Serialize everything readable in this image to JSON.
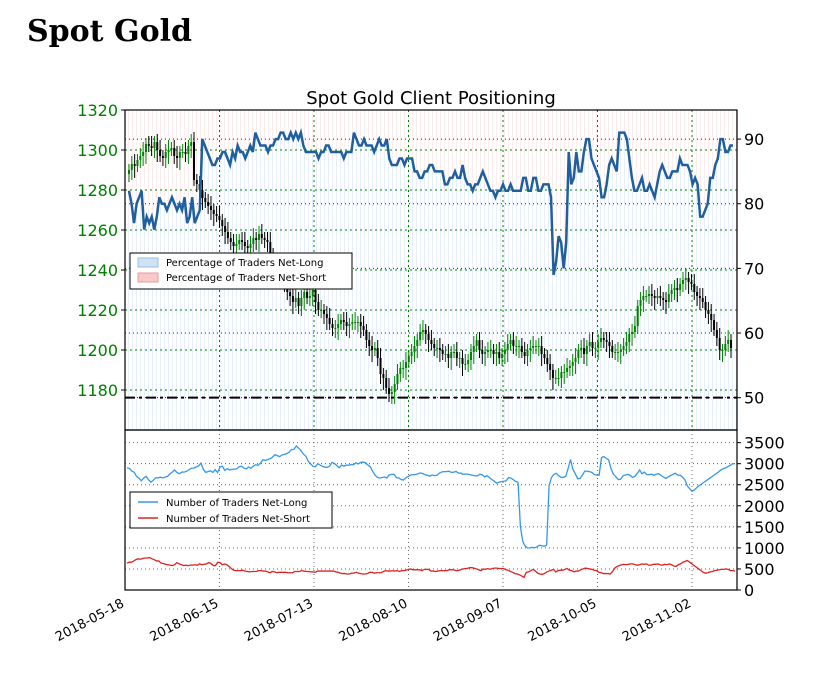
{
  "page": {
    "title": "Spot Gold"
  },
  "chart_data": [
    {
      "type": "candlestick+line",
      "title": "Spot Gold Client Positioning",
      "x_dates": [
        "2018-05-18",
        "2018-06-15",
        "2018-07-13",
        "2018-08-10",
        "2018-09-07",
        "2018-10-05",
        "2018-11-02"
      ],
      "left_axis": {
        "ticks": [
          1180,
          1200,
          1220,
          1240,
          1260,
          1280,
          1300,
          1320
        ],
        "ylim": [
          1160,
          1320
        ],
        "color": "#008000"
      },
      "right_axis": {
        "ticks": [
          50,
          60,
          70,
          80,
          90
        ],
        "ylim": [
          45,
          94.5
        ]
      },
      "legend": {
        "placement": "middle-left",
        "entries": [
          "Percentage of Traders Net-Long",
          "Percentage of Traders Net-Short"
        ]
      },
      "reference_line": {
        "value": 50,
        "style": "dash-dot"
      },
      "net_long_pct": [
        82,
        80,
        77,
        80,
        81,
        82,
        76,
        78,
        77,
        78,
        76,
        78,
        81,
        80,
        80,
        79,
        80,
        81,
        80,
        79,
        80,
        79,
        81,
        77,
        78,
        81,
        77,
        78,
        79,
        90,
        89,
        88,
        87,
        86,
        86,
        87,
        87,
        88,
        88,
        87,
        86,
        88,
        87,
        89,
        88,
        88,
        87,
        88,
        89,
        88,
        91,
        90,
        89,
        89,
        89,
        88,
        89,
        89,
        90,
        90,
        91,
        91,
        90,
        90,
        91,
        90,
        91,
        90,
        91,
        89,
        88,
        88,
        88,
        88,
        88,
        87,
        88,
        88,
        89,
        89,
        88,
        88,
        88,
        88,
        88,
        87,
        88,
        88,
        88,
        91,
        90,
        89,
        89,
        90,
        89,
        89,
        89,
        88,
        89,
        90,
        89,
        89,
        90,
        87,
        86,
        86,
        86,
        87,
        87,
        86,
        87,
        87,
        87,
        85,
        85,
        84,
        84,
        85,
        85,
        86,
        86,
        85,
        85,
        85,
        85,
        83,
        83,
        84,
        84,
        85,
        84,
        84,
        86,
        84,
        83,
        83,
        82,
        83,
        83,
        84,
        85,
        84,
        83,
        82,
        82,
        81,
        82,
        82,
        83,
        82,
        82,
        83,
        82,
        82,
        82,
        82,
        84,
        84,
        82,
        82,
        84,
        84,
        82,
        82,
        83,
        83,
        83,
        81,
        69,
        71,
        75,
        74,
        70,
        74,
        88,
        83,
        84,
        88,
        85,
        85,
        88,
        90,
        90,
        87,
        86,
        85,
        84,
        81,
        81,
        83,
        86,
        87,
        86,
        85,
        91,
        91,
        91,
        90,
        87,
        84,
        82,
        82,
        83,
        84,
        82,
        82,
        83,
        82,
        81,
        83,
        85,
        86,
        85,
        84,
        84,
        85,
        85,
        85,
        87,
        86,
        86,
        86,
        85,
        83,
        84,
        83,
        78,
        78,
        79,
        80,
        84,
        84,
        86,
        87,
        90,
        90,
        88,
        88,
        89,
        89
      ],
      "candles_close": [
        1290,
        1293,
        1292,
        1295,
        1297,
        1299,
        1303,
        1302,
        1301,
        1304,
        1300,
        1297,
        1296,
        1299,
        1300,
        1301,
        1297,
        1296,
        1299,
        1299,
        1298,
        1302,
        1304,
        1285,
        1283,
        1280,
        1276,
        1274,
        1272,
        1270,
        1268,
        1267,
        1265,
        1262,
        1259,
        1256,
        1254,
        1252,
        1253,
        1255,
        1254,
        1252,
        1251,
        1253,
        1256,
        1255,
        1258,
        1256,
        1255,
        1254,
        1248,
        1244,
        1242,
        1240,
        1237,
        1232,
        1229,
        1227,
        1224,
        1226,
        1222,
        1226,
        1229,
        1226,
        1227,
        1230,
        1224,
        1220,
        1220,
        1218,
        1216,
        1213,
        1211,
        1211,
        1213,
        1215,
        1214,
        1212,
        1213,
        1214,
        1214,
        1214,
        1212,
        1210,
        1205,
        1202,
        1200,
        1201,
        1196,
        1188,
        1186,
        1181,
        1178,
        1179,
        1183,
        1188,
        1191,
        1191,
        1194,
        1197,
        1199,
        1202,
        1205,
        1209,
        1210,
        1208,
        1205,
        1203,
        1201,
        1201,
        1200,
        1198,
        1198,
        1196,
        1199,
        1199,
        1196,
        1196,
        1193,
        1193,
        1195,
        1199,
        1202,
        1205,
        1200,
        1198,
        1199,
        1200,
        1200,
        1198,
        1199,
        1196,
        1198,
        1200,
        1203,
        1205,
        1202,
        1202,
        1202,
        1199,
        1197,
        1200,
        1201,
        1202,
        1202,
        1202,
        1198,
        1196,
        1193,
        1190,
        1186,
        1186,
        1186,
        1189,
        1189,
        1191,
        1192,
        1194,
        1196,
        1200,
        1201,
        1198,
        1202,
        1204,
        1201,
        1201,
        1204,
        1206,
        1205,
        1204,
        1202,
        1199,
        1199,
        1199,
        1200,
        1202,
        1204,
        1208,
        1209,
        1212,
        1222,
        1225,
        1227,
        1227,
        1228,
        1227,
        1226,
        1227,
        1226,
        1225,
        1224,
        1228,
        1230,
        1231,
        1230,
        1233,
        1235,
        1236,
        1234,
        1233,
        1229,
        1227,
        1226,
        1224,
        1220,
        1218,
        1215,
        1210,
        1206,
        1200,
        1200,
        1203,
        1205,
        1201
      ],
      "net_long_traders": [
        2900,
        2890,
        2823,
        2796,
        2701,
        2658,
        2594,
        2659,
        2701,
        2620,
        2562,
        2602,
        2666,
        2662,
        2679,
        2663,
        2680,
        2697,
        2758,
        2800,
        2851,
        2787,
        2761,
        2802,
        2800,
        2821,
        2856,
        2891,
        2894,
        2921,
        2947,
        3013,
        2870,
        2792,
        2814,
        2829,
        2792,
        2858,
        2791,
        2919,
        2941,
        2839,
        2881,
        2852,
        2864,
        2871,
        2876,
        2925,
        2939,
        2896,
        2880,
        2922,
        2893,
        2945,
        2974,
        2961,
        3015,
        3095,
        3081,
        3096,
        3120,
        3153,
        3213,
        3191,
        3168,
        3208,
        3221,
        3239,
        3276,
        3335,
        3340,
        3420,
        3370,
        3310,
        3225,
        3179,
        3060,
        2998,
        2938,
        2927,
        2999,
        2968,
        2936,
        2917,
        2913,
        2944,
        3032,
        3002,
        2956,
        2904,
        2967,
        2939,
        2967,
        2960,
        2980,
        2976,
        3023,
        2993,
        3033,
        3038,
        3022,
        2970,
        2929,
        2822,
        2730,
        2676,
        2658,
        2673,
        2684,
        2662,
        2734,
        2746,
        2749,
        2668,
        2660,
        2620,
        2611,
        2667,
        2697,
        2735,
        2737,
        2744,
        2758,
        2781,
        2766,
        2738,
        2727,
        2704,
        2731,
        2717,
        2726,
        2775,
        2803,
        2812,
        2813,
        2821,
        2794,
        2798,
        2818,
        2776,
        2778,
        2745,
        2758,
        2749,
        2736,
        2722,
        2714,
        2712,
        2750,
        2735,
        2687,
        2716,
        2673,
        2621,
        2584,
        2538,
        2560,
        2575,
        2582,
        2592,
        2667,
        2660,
        2620,
        2579,
        2560,
        1500,
        1152,
        1041,
        997,
        1001,
        1014,
        1001,
        1029,
        1061,
        1053,
        1038,
        1065,
        2470,
        2669,
        2744,
        2772,
        2717,
        2676,
        2674,
        2698,
        2883,
        3099,
        2865,
        2765,
        2641,
        2650,
        2728,
        2826,
        2820,
        2810,
        2791,
        2740,
        2733,
        2726,
        3144,
        3171,
        3126,
        3091,
        2882,
        2748,
        2691,
        2626,
        2627,
        2713,
        2732,
        2747,
        2723,
        2676,
        2699,
        2771,
        2851,
        2759,
        2801,
        2740,
        2741,
        2751,
        2725,
        2749,
        2762,
        2719,
        2682,
        2649,
        2687,
        2717,
        2749,
        2772,
        2730,
        2726,
        2681,
        2614,
        2470,
        2405,
        2345,
        2376,
        2435,
        2480,
        2520,
        2559,
        2600,
        2640,
        2680,
        2720,
        2760,
        2800,
        2850,
        2880,
        2900,
        2930,
        2960,
        3000,
        3000
      ],
      "net_short_traders": [
        640,
        660,
        660,
        689,
        725,
        740,
        730,
        750,
        760,
        760,
        770,
        740,
        720,
        690,
        690,
        640,
        630,
        610,
        600,
        590,
        580,
        600,
        650,
        620,
        600,
        580,
        590,
        580,
        590,
        590,
        600,
        590,
        620,
        600,
        610,
        620,
        650,
        630,
        580,
        580,
        660,
        650,
        600,
        620,
        600,
        560,
        510,
        470,
        460,
        460,
        460,
        470,
        450,
        440,
        430,
        440,
        440,
        440,
        460,
        460,
        450,
        450,
        430,
        410,
        440,
        430,
        410,
        420,
        420,
        420,
        420,
        410,
        410,
        410,
        440,
        440,
        440,
        460,
        450,
        440,
        440,
        430,
        430,
        420,
        450,
        450,
        450,
        450,
        450,
        450,
        450,
        450,
        430,
        420,
        400,
        390,
        390,
        380,
        380,
        400,
        400,
        420,
        400,
        390,
        380,
        380,
        390,
        420,
        420,
        400,
        410,
        410,
        410,
        440,
        460,
        450,
        450,
        460,
        450,
        460,
        440,
        460,
        460,
        470,
        490,
        500,
        480,
        480,
        480,
        480,
        460,
        490,
        490,
        490,
        450,
        450,
        440,
        450,
        460,
        460,
        460,
        460,
        480,
        480,
        480,
        460,
        460,
        480,
        500,
        510,
        510,
        530,
        530,
        520,
        500,
        480,
        460,
        500,
        490,
        510,
        490,
        510,
        520,
        520,
        510,
        510,
        510,
        480,
        470,
        440,
        420,
        390,
        380,
        360,
        330,
        300,
        420,
        430,
        460,
        490,
        450,
        400,
        380,
        370,
        390,
        430,
        450,
        470,
        490,
        430,
        460,
        470,
        470,
        490,
        510,
        470,
        460,
        430,
        450,
        450,
        480,
        500,
        520,
        510,
        500,
        490,
        470,
        460,
        420,
        410,
        390,
        390,
        390,
        380,
        440,
        520,
        560,
        580,
        600,
        610,
        600,
        610,
        620,
        620,
        600,
        590,
        600,
        620,
        610,
        620,
        590,
        590,
        610,
        610,
        620,
        600,
        590,
        610,
        600,
        620,
        600,
        570,
        560,
        600,
        620,
        660,
        680,
        700,
        660,
        620,
        580,
        540,
        500,
        460,
        420,
        400,
        410,
        430,
        440,
        460,
        470,
        480,
        490,
        490,
        500,
        490,
        460,
        460,
        450
      ],
      "bottom_axis": {
        "ticks": [
          0,
          500,
          1000,
          1500,
          2000,
          2500,
          3000,
          3500
        ],
        "ylim": [
          0,
          3500
        ]
      },
      "bottom_legend": {
        "placement": "middle-left",
        "entries": [
          "Number of Traders Net-Long",
          "Number of Traders Net-Short"
        ]
      },
      "colors": {
        "net_long_line": "#1f5fa0",
        "net_long_traders": "#3399ee",
        "net_short_traders": "#dd2222",
        "up_candle": "#008000",
        "down_candle": "#000000",
        "axis_tick_green": "#008000",
        "grid": "#008000"
      }
    }
  ]
}
